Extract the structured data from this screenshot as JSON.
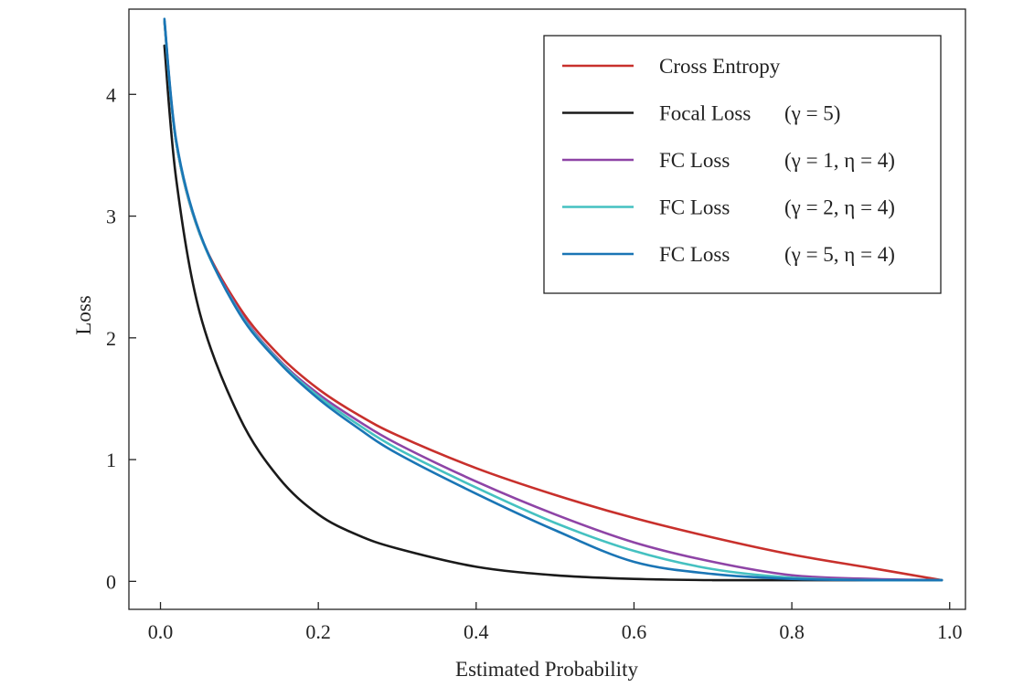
{
  "chart_data": {
    "type": "line",
    "xlabel": "Estimated Probability",
    "ylabel": "Loss",
    "xlim": [
      -0.04,
      1.02
    ],
    "ylim": [
      -0.23,
      4.7
    ],
    "xticks": [
      0.0,
      0.2,
      0.4,
      0.6,
      0.8,
      1.0
    ],
    "xtick_labels": [
      "0.0",
      "0.2",
      "0.4",
      "0.6",
      "0.8",
      "1.0"
    ],
    "yticks": [
      0,
      1,
      2,
      3,
      4
    ],
    "ytick_labels": [
      "0",
      "1",
      "2",
      "3",
      "4"
    ],
    "grid": false,
    "legend_position": "top-right",
    "series": [
      {
        "name": "Cross Entropy",
        "param": "",
        "color": "#c8302c",
        "x": [
          0.005,
          0.02,
          0.05,
          0.1,
          0.15,
          0.2,
          0.25,
          0.3,
          0.4,
          0.5,
          0.6,
          0.7,
          0.8,
          0.9,
          0.99
        ],
        "y": [
          4.6,
          3.6,
          2.85,
          2.25,
          1.86,
          1.58,
          1.37,
          1.2,
          0.93,
          0.71,
          0.52,
          0.36,
          0.22,
          0.11,
          0.01
        ]
      },
      {
        "name": "Focal Loss",
        "param": "(γ = 5)",
        "color": "#1a1a1a",
        "x": [
          0.005,
          0.02,
          0.05,
          0.1,
          0.15,
          0.2,
          0.25,
          0.3,
          0.4,
          0.5,
          0.6,
          0.7,
          0.8,
          0.9,
          0.99
        ],
        "y": [
          4.4,
          3.3,
          2.2,
          1.35,
          0.85,
          0.55,
          0.38,
          0.27,
          0.12,
          0.05,
          0.02,
          0.01,
          0.01,
          0.01,
          0.01
        ]
      },
      {
        "name": "FC Loss",
        "param": "(γ = 1, η = 4)",
        "color": "#8e44a6",
        "x": [
          0.005,
          0.02,
          0.05,
          0.1,
          0.15,
          0.2,
          0.25,
          0.3,
          0.4,
          0.5,
          0.6,
          0.7,
          0.8,
          0.9,
          0.99
        ],
        "y": [
          4.6,
          3.6,
          2.85,
          2.22,
          1.82,
          1.54,
          1.32,
          1.13,
          0.82,
          0.55,
          0.32,
          0.16,
          0.05,
          0.02,
          0.01
        ]
      },
      {
        "name": "FC Loss",
        "param": "(γ = 2, η = 4)",
        "color": "#45c1c1",
        "x": [
          0.005,
          0.02,
          0.05,
          0.1,
          0.15,
          0.2,
          0.25,
          0.3,
          0.4,
          0.5,
          0.6,
          0.7,
          0.8,
          0.9,
          0.99
        ],
        "y": [
          4.6,
          3.6,
          2.85,
          2.21,
          1.81,
          1.52,
          1.29,
          1.09,
          0.77,
          0.48,
          0.25,
          0.1,
          0.03,
          0.01,
          0.01
        ]
      },
      {
        "name": "FC Loss",
        "param": "(γ = 5, η = 4)",
        "color": "#1a75b5",
        "x": [
          0.005,
          0.02,
          0.05,
          0.1,
          0.15,
          0.2,
          0.25,
          0.3,
          0.4,
          0.5,
          0.6,
          0.7,
          0.8,
          0.9,
          0.99
        ],
        "y": [
          4.62,
          3.62,
          2.86,
          2.2,
          1.8,
          1.5,
          1.26,
          1.05,
          0.72,
          0.42,
          0.16,
          0.06,
          0.02,
          0.01,
          0.01
        ]
      }
    ]
  }
}
